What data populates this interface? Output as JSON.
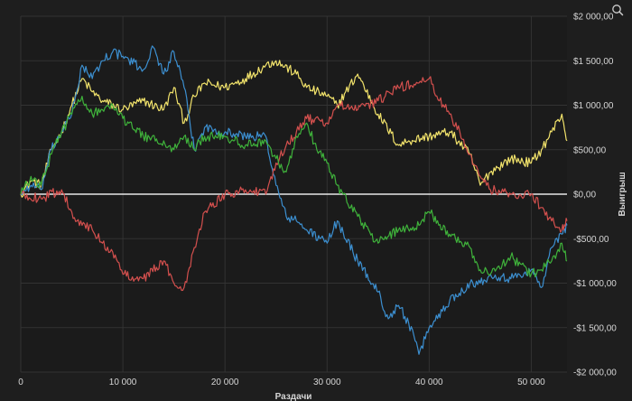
{
  "chart_data": {
    "type": "line",
    "title": "",
    "xlabel": "Раздачи",
    "ylabel": "Выигрыш",
    "xlim": [
      0,
      53500
    ],
    "ylim": [
      -2000,
      2000
    ],
    "x_ticks": [
      "0",
      "10 000",
      "20 000",
      "30 000",
      "40 000",
      "50 000"
    ],
    "y_ticks": [
      "$2 000,00",
      "$1 500,00",
      "$1 000,00",
      "$500,00",
      "$0,00",
      "-$500,00",
      "-$1 000,00",
      "-$1 500,00",
      "-$2 000,00"
    ],
    "grid": true,
    "series": [
      {
        "color": "#f2e36b",
        "x": [
          0,
          1000,
          2000,
          3000,
          4000,
          5000,
          6000,
          7000,
          8000,
          10000,
          12000,
          14000,
          15000,
          16000,
          17000,
          18000,
          20000,
          22000,
          24000,
          25000,
          27000,
          28000,
          30000,
          31000,
          33000,
          35000,
          37000,
          38000,
          40000,
          42000,
          44000,
          45000,
          46000,
          48000,
          50000,
          51000,
          52000,
          53000,
          53500
        ],
        "y": [
          0,
          150,
          100,
          500,
          700,
          1000,
          1300,
          1150,
          1050,
          950,
          1050,
          950,
          1200,
          800,
          1100,
          1250,
          1200,
          1300,
          1450,
          1500,
          1350,
          1200,
          1100,
          1000,
          1350,
          900,
          550,
          600,
          650,
          700,
          450,
          100,
          250,
          400,
          350,
          500,
          700,
          900,
          600
        ]
      },
      {
        "color": "#3c8fd0",
        "x": [
          0,
          1000,
          2000,
          3000,
          4000,
          5000,
          6000,
          7000,
          8000,
          9000,
          10000,
          12000,
          13000,
          14000,
          15000,
          16000,
          17000,
          18000,
          20000,
          22000,
          24000,
          25000,
          26000,
          27000,
          28000,
          30000,
          31000,
          33000,
          35000,
          36000,
          37000,
          38000,
          39000,
          40000,
          42000,
          44000,
          45000,
          46000,
          48000,
          50000,
          51000,
          52000,
          53000,
          53500
        ],
        "y": [
          0,
          100,
          50,
          500,
          700,
          900,
          1450,
          1300,
          1500,
          1600,
          1550,
          1400,
          1650,
          1350,
          1600,
          1200,
          500,
          750,
          700,
          650,
          650,
          100,
          -250,
          -300,
          -400,
          -550,
          -300,
          -750,
          -1100,
          -1400,
          -1250,
          -1450,
          -1800,
          -1500,
          -1200,
          -1000,
          -1000,
          -900,
          -950,
          -850,
          -1050,
          -600,
          -450,
          -350
        ]
      },
      {
        "color": "#d4504e",
        "x": [
          0,
          2000,
          4000,
          5000,
          6000,
          7000,
          8000,
          9000,
          10000,
          12000,
          14000,
          15000,
          16000,
          17000,
          18000,
          20000,
          22000,
          24000,
          25000,
          26000,
          27000,
          28000,
          30000,
          31000,
          33000,
          35000,
          37000,
          39000,
          40000,
          41000,
          42000,
          43000,
          44000,
          45000,
          46000,
          48000,
          50000,
          51000,
          52000,
          53000,
          53500
        ],
        "y": [
          0,
          -50,
          50,
          -200,
          -350,
          -400,
          -550,
          -650,
          -900,
          -950,
          -750,
          -1000,
          -1050,
          -600,
          -200,
          0,
          50,
          0,
          350,
          550,
          700,
          850,
          800,
          1000,
          950,
          1050,
          1200,
          1250,
          1300,
          1050,
          900,
          700,
          450,
          200,
          50,
          0,
          0,
          -150,
          -300,
          -400,
          -300
        ]
      },
      {
        "color": "#3fb23b",
        "x": [
          0,
          1000,
          2000,
          3000,
          4000,
          5000,
          6000,
          7000,
          8000,
          9000,
          10000,
          12000,
          14000,
          15000,
          16000,
          17000,
          18000,
          20000,
          22000,
          24000,
          25000,
          26000,
          27000,
          28000,
          29000,
          30000,
          31000,
          33000,
          35000,
          37000,
          39000,
          40000,
          42000,
          44000,
          45000,
          46000,
          48000,
          50000,
          51000,
          52000,
          53000,
          53500
        ],
        "y": [
          0,
          200,
          100,
          450,
          700,
          900,
          1100,
          900,
          950,
          1000,
          850,
          650,
          600,
          500,
          650,
          500,
          650,
          650,
          550,
          600,
          400,
          250,
          650,
          800,
          500,
          350,
          100,
          -250,
          -550,
          -400,
          -350,
          -200,
          -450,
          -600,
          -850,
          -900,
          -700,
          -900,
          -850,
          -750,
          -550,
          -750
        ]
      }
    ]
  },
  "ui": {
    "zoom_icon": "magnifier-icon"
  }
}
